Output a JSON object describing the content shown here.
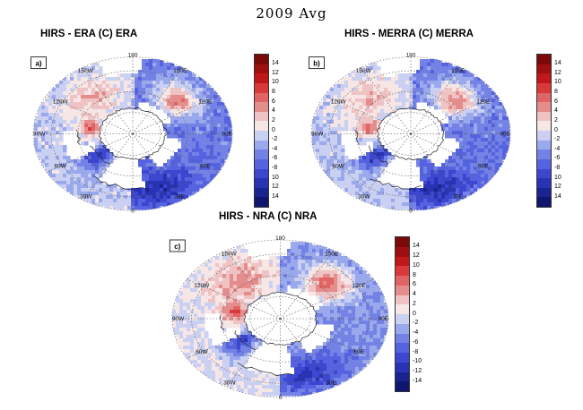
{
  "title": "2009 Avg",
  "colorbar": {
    "tick_labels_ab": [
      "14",
      "12",
      "10",
      "8",
      "6",
      "4",
      "2",
      "0",
      "-2",
      "-4",
      "-6",
      "-8",
      "10",
      "12",
      "14"
    ],
    "tick_labels_c": [
      "14",
      "12",
      "10",
      "8",
      "6",
      "4",
      "2",
      "0",
      "-2",
      "-4",
      "-6",
      "-8",
      "-10",
      "-12",
      "-14"
    ],
    "colors": [
      "#7a0a0a",
      "#9e0f0f",
      "#c01818",
      "#d83a3a",
      "#e06464",
      "#e58c8c",
      "#efc3c3",
      "#f6e6e6",
      "#c9d0f2",
      "#9aa8ec",
      "#7482e6",
      "#5563e0",
      "#3c46cf",
      "#2833b4",
      "#1a2490",
      "#0f1670"
    ],
    "range": [
      -16,
      16
    ]
  },
  "panels": [
    {
      "id": "a",
      "label": "a)",
      "title": "HIRS - ERA (C) ERA",
      "lon_labels": [
        "180",
        "150E",
        "120E",
        "90E",
        "60E",
        "30E",
        "0",
        "30W",
        "60W",
        "90W",
        "120W",
        "150W"
      ]
    },
    {
      "id": "b",
      "label": "b)",
      "title": "HIRS - MERRA (C) MERRA",
      "lon_labels": [
        "180",
        "150E",
        "120E",
        "90E",
        "60E",
        "30E",
        "0",
        "30W",
        "60W",
        "90W",
        "120W",
        "150W"
      ]
    },
    {
      "id": "c",
      "label": "c)",
      "title": "HIRS - NRA (C) NRA",
      "lon_labels": [
        "180",
        "150E",
        "120E",
        "90E",
        "60E",
        "30E",
        "0",
        "30W",
        "60W",
        "90W",
        "120W",
        "150W"
      ]
    }
  ],
  "colors": {
    "land_outline": "#222222",
    "grid": "#555555",
    "missing": "#ffffff"
  }
}
